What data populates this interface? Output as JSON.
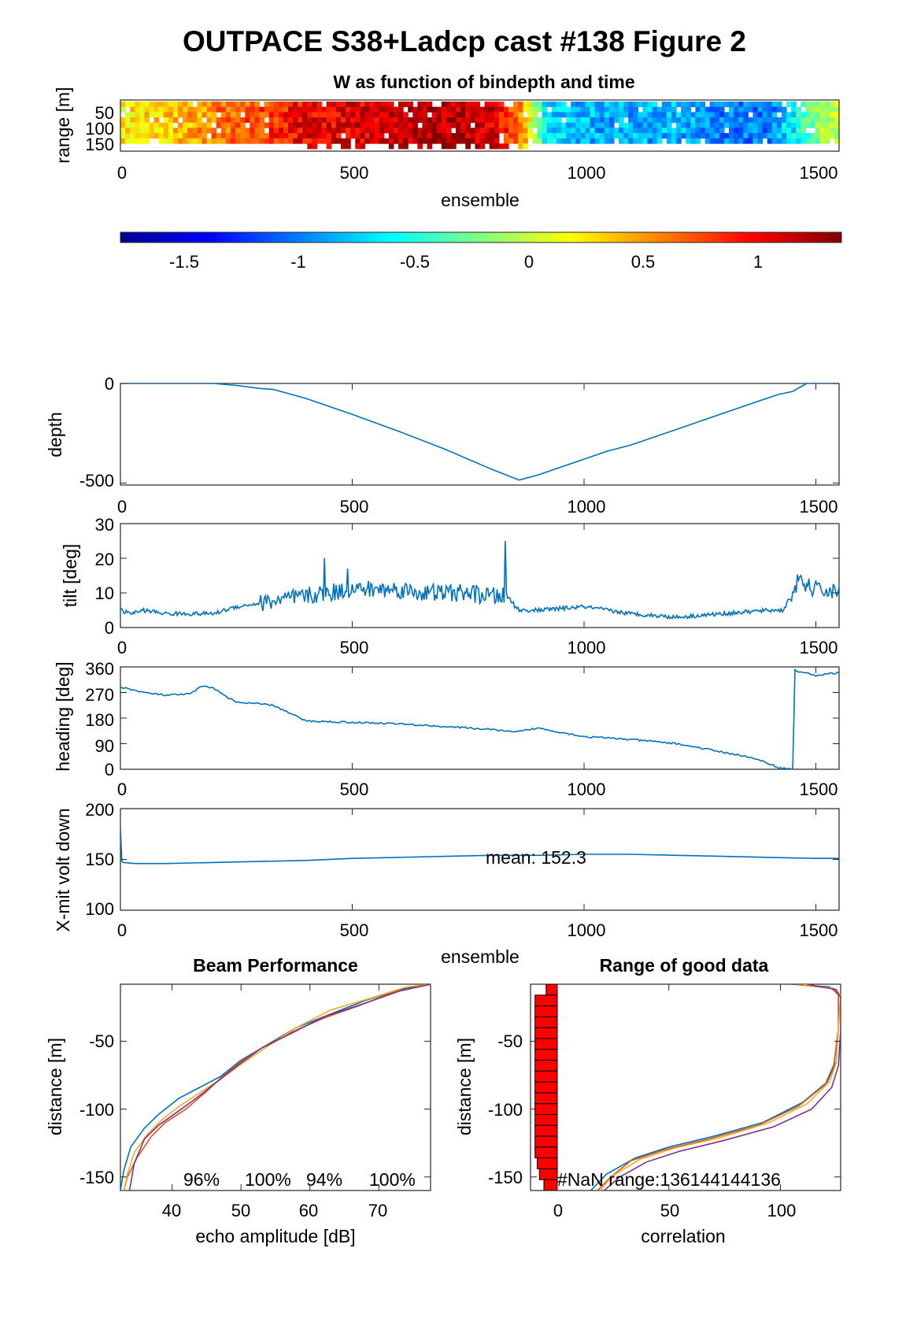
{
  "figure": {
    "title": "OUTPACE S38+Ladcp cast #138 Figure 2"
  },
  "colors": {
    "series_blue": "#0072BD",
    "series_orange": "#D95319",
    "series_yellow": "#EDB120",
    "series_purple": "#7E2F8E",
    "nan_bar": "#ff0000"
  },
  "panels": {
    "w_image": {
      "title": "W as function of bindepth and time",
      "xlabel": "ensemble",
      "ylabel": "range [m]",
      "xticks": [
        "0",
        "500",
        "1000",
        "1500"
      ],
      "yticks": [
        "50",
        "100",
        "150"
      ],
      "colorbar_ticks": [
        "-1.5",
        "-1",
        "-0.5",
        "0",
        "0.5",
        "1"
      ],
      "colormap": "jet"
    },
    "depth": {
      "ylabel": "depth",
      "xticks": [
        "0",
        "500",
        "1000",
        "1500"
      ],
      "yticks": [
        "0",
        "-500"
      ]
    },
    "tilt": {
      "ylabel": "tilt [deg]",
      "xticks": [
        "0",
        "500",
        "1000",
        "1500"
      ],
      "yticks": [
        "30",
        "20",
        "10",
        "0"
      ]
    },
    "heading": {
      "ylabel": "heading [deg]",
      "xticks": [
        "0",
        "500",
        "1000",
        "1500"
      ],
      "yticks": [
        "360",
        "270",
        "180",
        "90",
        "0"
      ]
    },
    "voltage": {
      "ylabel": "X-mit volt down",
      "xlabel": "ensemble",
      "xticks": [
        "0",
        "500",
        "1000",
        "1500"
      ],
      "yticks": [
        "200",
        "150",
        "100"
      ],
      "annotation": "mean: 152.3"
    },
    "beam": {
      "title": "Beam Performance",
      "xlabel": "echo amplitude [dB]",
      "ylabel": "distance [m]",
      "xticks": [
        "40",
        "50",
        "60",
        "70"
      ],
      "yticks": [
        "-50",
        "-100",
        "-150"
      ],
      "percents": [
        "96%",
        "100%",
        "94%",
        "100%"
      ]
    },
    "range_good": {
      "title": "Range of good data",
      "xlabel": "correlation",
      "ylabel": "distance [m]",
      "xticks": [
        "0",
        "50",
        "100"
      ],
      "yticks": [
        "-50",
        "-100",
        "-150"
      ],
      "annotation": "#NaN range:136144144136"
    }
  },
  "chart_data": [
    {
      "type": "heatmap",
      "name": "W as function of bindepth and time",
      "x_range": [
        0,
        1550
      ],
      "y_range": [
        20,
        180
      ],
      "y_reversed": true,
      "color_range": [
        -1.8,
        1.35
      ],
      "w_trend": {
        "ensemble": [
          0,
          100,
          200,
          300,
          400,
          500,
          600,
          700,
          800,
          860,
          920,
          1000,
          1100,
          1200,
          1300,
          1400,
          1460,
          1500,
          1550
        ],
        "w": [
          0.2,
          0.3,
          0.55,
          0.75,
          1.0,
          1.05,
          1.15,
          1.2,
          1.1,
          0.6,
          -0.7,
          -0.85,
          -0.9,
          -0.85,
          -1.0,
          -1.05,
          -0.6,
          -0.2,
          0.0
        ]
      }
    },
    {
      "type": "line",
      "name": "depth",
      "x": [
        0,
        100,
        200,
        250,
        300,
        330,
        400,
        500,
        600,
        700,
        800,
        860,
        900,
        1000,
        1050,
        1100,
        1200,
        1300,
        1400,
        1420,
        1450,
        1480,
        1500,
        1550
      ],
      "y": [
        0,
        0,
        0,
        -10,
        -25,
        -30,
        -75,
        -155,
        -240,
        -330,
        -430,
        -485,
        -460,
        -380,
        -340,
        -310,
        -230,
        -150,
        -70,
        -55,
        -40,
        0,
        0,
        0
      ],
      "xlim": [
        0,
        1550
      ],
      "ylim": [
        -510,
        0
      ]
    },
    {
      "type": "line",
      "name": "tilt",
      "x": [
        0,
        20,
        50,
        100,
        150,
        200,
        250,
        300,
        350,
        400,
        450,
        500,
        550,
        600,
        650,
        700,
        750,
        800,
        830,
        860,
        900,
        1000,
        1050,
        1100,
        1200,
        1300,
        1400,
        1430,
        1460,
        1500,
        1550
      ],
      "y": [
        5,
        4,
        5,
        4,
        4,
        4,
        6,
        7,
        8,
        9,
        10,
        11,
        11,
        11,
        10,
        10,
        10,
        9,
        9,
        5,
        5,
        6,
        5,
        4,
        3,
        4,
        5,
        5,
        13,
        11,
        10
      ],
      "spikes": {
        "x": [
          440,
          490,
          830
        ],
        "y": [
          20,
          17,
          25
        ]
      },
      "xlim": [
        0,
        1550
      ],
      "ylim": [
        0,
        30
      ]
    },
    {
      "type": "line",
      "name": "heading",
      "x": [
        0,
        50,
        100,
        150,
        180,
        200,
        250,
        300,
        330,
        400,
        500,
        600,
        700,
        800,
        850,
        900,
        1000,
        1100,
        1200,
        1300,
        1350,
        1400,
        1420,
        1450,
        1455,
        1460,
        1500,
        1550
      ],
      "y": [
        290,
        270,
        260,
        265,
        295,
        285,
        235,
        230,
        225,
        170,
        165,
        160,
        150,
        140,
        130,
        145,
        115,
        105,
        90,
        60,
        45,
        20,
        5,
        0,
        350,
        345,
        330,
        340
      ],
      "xlim": [
        0,
        1550
      ],
      "ylim": [
        0,
        360
      ]
    },
    {
      "type": "line",
      "name": "X-mit volt down",
      "x": [
        0,
        3,
        6,
        30,
        100,
        200,
        300,
        400,
        500,
        600,
        700,
        800,
        900,
        1000,
        1100,
        1200,
        1300,
        1400,
        1500,
        1550
      ],
      "y": [
        180,
        148,
        147,
        146,
        146,
        147,
        148,
        149,
        151,
        152,
        153,
        154,
        154,
        155,
        155,
        154,
        153,
        152,
        151,
        151
      ],
      "xlim": [
        0,
        1550
      ],
      "ylim": [
        100,
        200
      ]
    },
    {
      "type": "line",
      "name": "Beam Performance",
      "xlim": [
        32.5,
        77.5
      ],
      "ylim": [
        -160,
        -8
      ],
      "series": [
        {
          "name": "",
          "x": [
            77.5,
            73,
            68,
            63,
            58,
            54,
            50,
            47,
            44,
            41,
            38,
            36,
            34,
            33,
            32.5
          ],
          "y": [
            -8,
            -12,
            -20,
            -30,
            -40,
            -52,
            -64,
            -76,
            -84,
            -92,
            -104,
            -114,
            -128,
            -145,
            -160
          ]
        },
        {
          "name": "",
          "x": [
            77.5,
            72,
            67,
            62,
            57,
            53,
            50,
            47.5,
            45,
            42,
            39,
            37,
            35,
            33.5,
            33
          ],
          "y": [
            -8,
            -14,
            -24,
            -33,
            -44,
            -55,
            -65,
            -75,
            -87,
            -100,
            -110,
            -120,
            -135,
            -150,
            -160
          ]
        },
        {
          "name": "",
          "x": [
            77.5,
            74,
            69,
            63,
            58,
            53.5,
            50,
            47,
            44,
            41,
            38.5,
            36.5,
            34.5,
            33.5,
            33
          ],
          "y": [
            -8,
            -10,
            -18,
            -27,
            -40,
            -55,
            -67,
            -78,
            -88,
            -98,
            -108,
            -118,
            -132,
            -148,
            -160
          ]
        },
        {
          "name": "",
          "x": [
            77.5,
            73,
            68,
            62,
            57,
            53,
            49.5,
            46.5,
            43.5,
            40.5,
            38,
            36,
            34.5,
            34,
            33.8
          ],
          "y": [
            -8,
            -13,
            -22,
            -32,
            -45,
            -55,
            -68,
            -80,
            -92,
            -103,
            -112,
            -122,
            -140,
            -155,
            -160
          ]
        }
      ],
      "annotations": [
        "96%",
        "100%",
        "94%",
        "100%"
      ]
    },
    {
      "type": "line",
      "name": "Range of good data",
      "xlim": [
        -12,
        127
      ],
      "ylim": [
        -160,
        -8
      ],
      "series": [
        {
          "name": "",
          "x": [
            105,
            122,
            126,
            126,
            125,
            121,
            110,
            92,
            70,
            50,
            35,
            22,
            15
          ],
          "y": [
            -8,
            -10,
            -15,
            -40,
            -65,
            -80,
            -95,
            -110,
            -120,
            -128,
            -136,
            -148,
            -160
          ]
        },
        {
          "name": "",
          "x": [
            107,
            123,
            126,
            126,
            124,
            120,
            108,
            90,
            68,
            48,
            33,
            24,
            18
          ],
          "y": [
            -8,
            -11,
            -16,
            -40,
            -67,
            -82,
            -98,
            -112,
            -122,
            -130,
            -138,
            -150,
            -160
          ]
        },
        {
          "name": "",
          "x": [
            110,
            124,
            127,
            126,
            125,
            122,
            112,
            95,
            73,
            52,
            37,
            25,
            19
          ],
          "y": [
            -8,
            -11,
            -16,
            -40,
            -66,
            -80,
            -96,
            -110,
            -121,
            -129,
            -137,
            -149,
            -160
          ]
        },
        {
          "name": "",
          "x": [
            112,
            125,
            127,
            127,
            126,
            123,
            114,
            97,
            75,
            55,
            40,
            28,
            21
          ],
          "y": [
            -8,
            -12,
            -18,
            -42,
            -68,
            -84,
            -100,
            -113,
            -123,
            -131,
            -139,
            -150,
            -160
          ]
        }
      ],
      "nan_bars": {
        "y_start": -8,
        "y_step": -8,
        "widths": [
          5,
          10,
          10,
          10,
          10,
          10,
          10,
          10,
          10,
          10,
          10,
          10,
          10,
          10,
          10,
          10,
          9,
          8,
          6,
          3
        ]
      },
      "annotation": "#NaN range:136144144136"
    }
  ]
}
